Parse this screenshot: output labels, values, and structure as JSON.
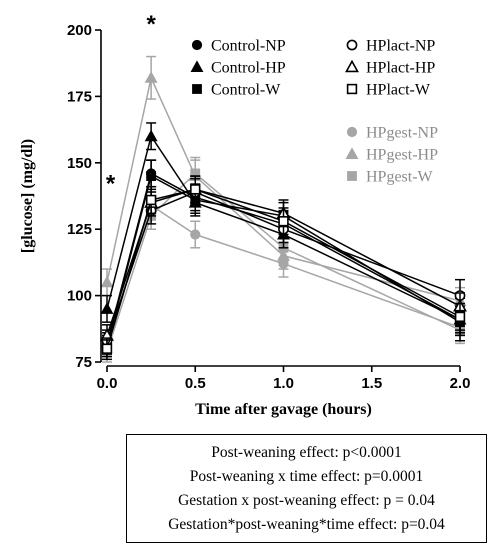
{
  "chart_data": {
    "type": "line",
    "xlabel": "Time after gavage (hours)",
    "ylabel": "[glucose] (mg/dl)",
    "xlim": [
      0,
      2
    ],
    "ylim": [
      75,
      200
    ],
    "x_ticks": [
      "0.0",
      "0.5",
      "1.0",
      "1.5",
      "2.0"
    ],
    "y_ticks": [
      "75",
      "100",
      "125",
      "150",
      "175",
      "200"
    ],
    "x": [
      0,
      0.25,
      0.5,
      1.0,
      2.0
    ],
    "legend_position": "top-right",
    "series": [
      {
        "name": "Control-NP",
        "color": "#000000",
        "marker": "circle-filled",
        "values": [
          82,
          146,
          137,
          127,
          91
        ],
        "errors": [
          4,
          5,
          5,
          5,
          8
        ]
      },
      {
        "name": "Control-HP",
        "color": "#000000",
        "marker": "triangle-filled",
        "values": [
          95,
          160,
          135,
          123,
          91
        ],
        "errors": [
          5,
          5,
          5,
          5,
          5
        ]
      },
      {
        "name": "Control-W",
        "color": "#000000",
        "marker": "square-filled",
        "values": [
          81,
          145,
          136,
          130,
          90
        ],
        "errors": [
          4,
          6,
          5,
          5,
          5
        ]
      },
      {
        "name": "HPlact-NP",
        "color": "#000000",
        "marker": "circle-open",
        "values": [
          83,
          132,
          139,
          125,
          100
        ],
        "errors": [
          4,
          5,
          5,
          5,
          6
        ]
      },
      {
        "name": "HPlact-HP",
        "color": "#000000",
        "marker": "triangle-open",
        "values": [
          85,
          135,
          140,
          131,
          96
        ],
        "errors": [
          4,
          5,
          5,
          5,
          5
        ]
      },
      {
        "name": "HPlact-W",
        "color": "#000000",
        "marker": "square-open",
        "values": [
          80,
          136,
          140,
          128,
          92
        ],
        "errors": [
          4,
          5,
          5,
          5,
          5
        ]
      },
      {
        "name": "HPgest-NP",
        "color": "#a6a6a6",
        "marker": "circle-filled",
        "values": [
          82,
          134,
          123,
          112,
          88
        ],
        "errors": [
          4,
          5,
          5,
          5,
          5
        ]
      },
      {
        "name": "HPgest-HP",
        "color": "#a6a6a6",
        "marker": "triangle-filled",
        "values": [
          105,
          182,
          145,
          115,
          98
        ],
        "errors": [
          5,
          8,
          7,
          5,
          5
        ]
      },
      {
        "name": "HPgest-W",
        "color": "#a6a6a6",
        "marker": "square-filled",
        "values": [
          79,
          130,
          146,
          118,
          87
        ],
        "errors": [
          4,
          5,
          5,
          5,
          5
        ]
      }
    ],
    "annotations": [
      {
        "text": "*",
        "x": 0.25,
        "y": 203
      },
      {
        "text": "*",
        "x": 0.02,
        "y": 143
      }
    ]
  },
  "stats_box": {
    "lines": [
      "Post-weaning effect: p<0.0001",
      "Post-weaning x time effect: p=0.0001",
      "Gestation x post-weaning effect: p = 0.04",
      "Gestation*post-weaning*time effect: p=0.04"
    ]
  }
}
